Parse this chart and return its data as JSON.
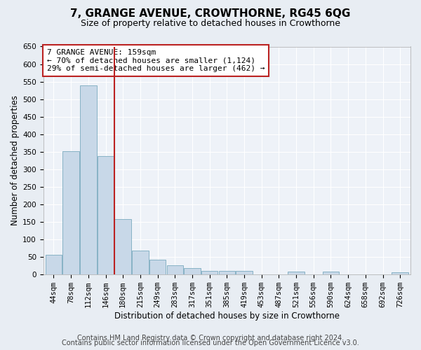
{
  "title": "7, GRANGE AVENUE, CROWTHORNE, RG45 6QG",
  "subtitle": "Size of property relative to detached houses in Crowthorne",
  "xlabel": "Distribution of detached houses by size in Crowthorne",
  "ylabel": "Number of detached properties",
  "categories": [
    "44sqm",
    "78sqm",
    "112sqm",
    "146sqm",
    "180sqm",
    "215sqm",
    "249sqm",
    "283sqm",
    "317sqm",
    "351sqm",
    "385sqm",
    "419sqm",
    "453sqm",
    "487sqm",
    "521sqm",
    "556sqm",
    "590sqm",
    "624sqm",
    "658sqm",
    "692sqm",
    "726sqm"
  ],
  "values": [
    55,
    352,
    540,
    338,
    157,
    68,
    42,
    25,
    18,
    10,
    9,
    9,
    0,
    0,
    7,
    0,
    7,
    0,
    0,
    0,
    6
  ],
  "bar_color": "#c8d8e8",
  "bar_edge_color": "#7aaabf",
  "vline_x": 3.5,
  "vline_color": "#bb2222",
  "annotation_text": "7 GRANGE AVENUE: 159sqm\n← 70% of detached houses are smaller (1,124)\n29% of semi-detached houses are larger (462) →",
  "annotation_box_color": "#ffffff",
  "annotation_box_edge": "#bb2222",
  "ylim": [
    0,
    650
  ],
  "yticks": [
    0,
    50,
    100,
    150,
    200,
    250,
    300,
    350,
    400,
    450,
    500,
    550,
    600,
    650
  ],
  "footer1": "Contains HM Land Registry data © Crown copyright and database right 2024.",
  "footer2": "Contains public sector information licensed under the Open Government Licence v3.0.",
  "bg_color": "#e8edf3",
  "plot_bg_color": "#eef2f8",
  "grid_color": "#ffffff",
  "title_fontsize": 11,
  "subtitle_fontsize": 9,
  "label_fontsize": 8.5,
  "tick_fontsize": 7.5,
  "footer_fontsize": 7
}
